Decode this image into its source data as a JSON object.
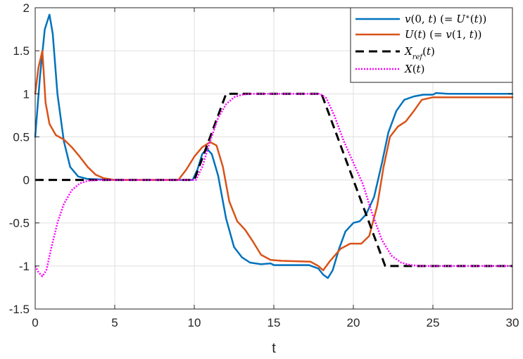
{
  "chart_data": {
    "type": "line",
    "title": "",
    "xlabel": "t",
    "ylabel": "",
    "xlim": [
      0,
      30
    ],
    "ylim": [
      -1.5,
      2
    ],
    "xticks": [
      0,
      5,
      10,
      15,
      20,
      25,
      30
    ],
    "yticks": [
      -1.5,
      -1,
      -0.5,
      0,
      0.5,
      1,
      1.5,
      2
    ],
    "xtick_labels": [
      "0",
      "5",
      "10",
      "15",
      "20",
      "25",
      "30"
    ],
    "ytick_labels": [
      "-1.5",
      "-1",
      "-0.5",
      "0",
      "0.5",
      "1",
      "1.5",
      "2"
    ],
    "grid": true,
    "legend_position": "top-right",
    "series": [
      {
        "name": "v(0,t)  (=U*(t))",
        "color": "#0072BD",
        "style": "solid",
        "points": [
          [
            0,
            0.5
          ],
          [
            0.3,
            1.2
          ],
          [
            0.6,
            1.75
          ],
          [
            0.9,
            1.92
          ],
          [
            1.1,
            1.7
          ],
          [
            1.4,
            1.0
          ],
          [
            1.8,
            0.45
          ],
          [
            2.2,
            0.15
          ],
          [
            2.7,
            0.04
          ],
          [
            3.3,
            0.01
          ],
          [
            5,
            0
          ],
          [
            9.9,
            0
          ],
          [
            10.2,
            0.12
          ],
          [
            10.5,
            0.3
          ],
          [
            10.8,
            0.36
          ],
          [
            11.1,
            0.3
          ],
          [
            11.5,
            0.05
          ],
          [
            12,
            -0.45
          ],
          [
            12.5,
            -0.78
          ],
          [
            13,
            -0.9
          ],
          [
            13.5,
            -0.96
          ],
          [
            14.2,
            -0.98
          ],
          [
            14.8,
            -0.97
          ],
          [
            15,
            -0.99
          ],
          [
            16,
            -0.99
          ],
          [
            17.2,
            -0.99
          ],
          [
            17.8,
            -1.03
          ],
          [
            18.1,
            -1.1
          ],
          [
            18.4,
            -1.14
          ],
          [
            18.7,
            -1.05
          ],
          [
            19.1,
            -0.8
          ],
          [
            19.5,
            -0.6
          ],
          [
            20,
            -0.5
          ],
          [
            20.4,
            -0.48
          ],
          [
            20.8,
            -0.4
          ],
          [
            21.3,
            -0.2
          ],
          [
            21.8,
            0.2
          ],
          [
            22.2,
            0.55
          ],
          [
            22.7,
            0.8
          ],
          [
            23.2,
            0.93
          ],
          [
            23.8,
            0.97
          ],
          [
            24.4,
            0.99
          ],
          [
            25,
            0.99
          ],
          [
            25.2,
            1.01
          ],
          [
            26,
            1.0
          ],
          [
            30,
            1.0
          ]
        ]
      },
      {
        "name": "U(t)    (=v(1,t))",
        "color": "#D95319",
        "style": "solid",
        "points": [
          [
            0,
            1.0
          ],
          [
            0.2,
            1.3
          ],
          [
            0.45,
            1.5
          ],
          [
            0.65,
            0.9
          ],
          [
            0.9,
            0.65
          ],
          [
            1.3,
            0.52
          ],
          [
            1.8,
            0.47
          ],
          [
            2.3,
            0.38
          ],
          [
            2.8,
            0.27
          ],
          [
            3.3,
            0.15
          ],
          [
            3.8,
            0.06
          ],
          [
            4.3,
            0.02
          ],
          [
            5,
            0.0
          ],
          [
            9,
            0.0
          ],
          [
            9.5,
            0.12
          ],
          [
            10,
            0.27
          ],
          [
            10.5,
            0.38
          ],
          [
            11,
            0.44
          ],
          [
            11.4,
            0.4
          ],
          [
            11.8,
            0.15
          ],
          [
            12.2,
            -0.25
          ],
          [
            12.7,
            -0.48
          ],
          [
            13.2,
            -0.58
          ],
          [
            13.7,
            -0.72
          ],
          [
            14.2,
            -0.87
          ],
          [
            14.8,
            -0.93
          ],
          [
            15.5,
            -0.94
          ],
          [
            17.3,
            -0.95
          ],
          [
            17.8,
            -1.0
          ],
          [
            18.1,
            -1.05
          ],
          [
            18.5,
            -0.95
          ],
          [
            19.2,
            -0.8
          ],
          [
            19.8,
            -0.74
          ],
          [
            20.5,
            -0.74
          ],
          [
            21,
            -0.65
          ],
          [
            21.5,
            -0.3
          ],
          [
            21.9,
            0.15
          ],
          [
            22.3,
            0.5
          ],
          [
            22.8,
            0.62
          ],
          [
            23.3,
            0.68
          ],
          [
            23.8,
            0.8
          ],
          [
            24.3,
            0.93
          ],
          [
            25,
            0.96
          ],
          [
            30,
            0.96
          ]
        ]
      },
      {
        "name": "X_ref(t)",
        "color": "#000000",
        "style": "dashed",
        "points": [
          [
            0,
            0
          ],
          [
            10,
            0
          ],
          [
            12,
            1
          ],
          [
            18,
            1
          ],
          [
            22,
            -1
          ],
          [
            30,
            -1
          ]
        ]
      },
      {
        "name": "X(t)",
        "color": "#FF00FF",
        "style": "dotted",
        "points": [
          [
            0,
            -1.0
          ],
          [
            0.2,
            -1.07
          ],
          [
            0.45,
            -1.12
          ],
          [
            0.7,
            -1.05
          ],
          [
            1.0,
            -0.8
          ],
          [
            1.4,
            -0.5
          ],
          [
            1.8,
            -0.28
          ],
          [
            2.3,
            -0.12
          ],
          [
            2.8,
            -0.04
          ],
          [
            3.3,
            -0.01
          ],
          [
            4,
            0
          ],
          [
            10.1,
            0
          ],
          [
            10.5,
            0.15
          ],
          [
            11,
            0.45
          ],
          [
            11.5,
            0.72
          ],
          [
            12,
            0.88
          ],
          [
            12.5,
            0.96
          ],
          [
            13,
            0.99
          ],
          [
            13.5,
            1.0
          ],
          [
            17.9,
            1.0
          ],
          [
            18.3,
            0.95
          ],
          [
            18.8,
            0.75
          ],
          [
            19.4,
            0.45
          ],
          [
            20,
            0.2
          ],
          [
            20.6,
            -0.05
          ],
          [
            21.2,
            -0.4
          ],
          [
            21.8,
            -0.7
          ],
          [
            22.4,
            -0.88
          ],
          [
            23,
            -0.96
          ],
          [
            23.6,
            -0.99
          ],
          [
            24.3,
            -1.0
          ],
          [
            30,
            -1.0
          ]
        ]
      }
    ]
  }
}
